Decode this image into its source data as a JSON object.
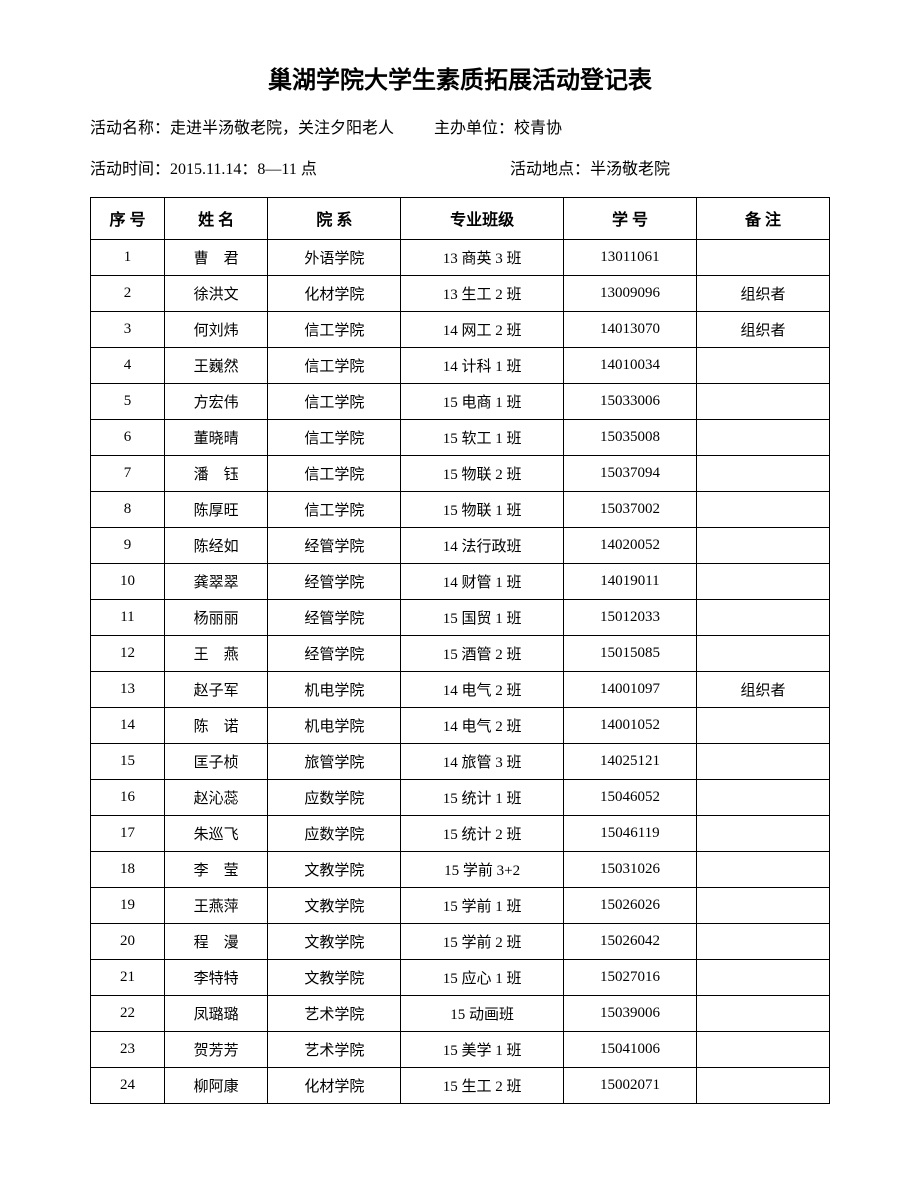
{
  "title": "巢湖学院大学生素质拓展活动登记表",
  "info": {
    "activity_name_label": "活动名称：",
    "activity_name": "走进半汤敬老院，关注夕阳老人",
    "host_label": "主办单位：",
    "host": "校青协",
    "time_label": "活动时间：",
    "time": "2015.11.14：8—11 点",
    "location_label": "活动地点：",
    "location": "半汤敬老院"
  },
  "table": {
    "headers": {
      "seq": "序 号",
      "name": "姓 名",
      "dept": "院 系",
      "class": "专业班级",
      "id": "学 号",
      "note": "备 注"
    },
    "rows": [
      {
        "seq": "1",
        "name": "曹　君",
        "dept": "外语学院",
        "class": "13 商英 3 班",
        "id": "13011061",
        "note": ""
      },
      {
        "seq": "2",
        "name": "徐洪文",
        "dept": "化材学院",
        "class": "13 生工 2 班",
        "id": "13009096",
        "note": "组织者"
      },
      {
        "seq": "3",
        "name": "何刘炜",
        "dept": "信工学院",
        "class": "14 网工 2 班",
        "id": "14013070",
        "note": "组织者"
      },
      {
        "seq": "4",
        "name": "王巍然",
        "dept": "信工学院",
        "class": "14 计科 1 班",
        "id": "14010034",
        "note": ""
      },
      {
        "seq": "5",
        "name": "方宏伟",
        "dept": "信工学院",
        "class": "15 电商 1 班",
        "id": "15033006",
        "note": ""
      },
      {
        "seq": "6",
        "name": "董晓晴",
        "dept": "信工学院",
        "class": "15 软工 1 班",
        "id": "15035008",
        "note": ""
      },
      {
        "seq": "7",
        "name": "潘　钰",
        "dept": "信工学院",
        "class": "15 物联 2 班",
        "id": "15037094",
        "note": ""
      },
      {
        "seq": "8",
        "name": "陈厚旺",
        "dept": "信工学院",
        "class": "15 物联 1 班",
        "id": "15037002",
        "note": ""
      },
      {
        "seq": "9",
        "name": "陈经如",
        "dept": "经管学院",
        "class": "14 法行政班",
        "id": "14020052",
        "note": ""
      },
      {
        "seq": "10",
        "name": "龚翠翠",
        "dept": "经管学院",
        "class": "14 财管 1 班",
        "id": "14019011",
        "note": ""
      },
      {
        "seq": "11",
        "name": "杨丽丽",
        "dept": "经管学院",
        "class": "15 国贸 1 班",
        "id": "15012033",
        "note": ""
      },
      {
        "seq": "12",
        "name": "王　燕",
        "dept": "经管学院",
        "class": "15 酒管 2 班",
        "id": "15015085",
        "note": ""
      },
      {
        "seq": "13",
        "name": "赵子军",
        "dept": "机电学院",
        "class": "14 电气 2 班",
        "id": "14001097",
        "note": "组织者"
      },
      {
        "seq": "14",
        "name": "陈　诺",
        "dept": "机电学院",
        "class": "14 电气 2 班",
        "id": "14001052",
        "note": ""
      },
      {
        "seq": "15",
        "name": "匡子桢",
        "dept": "旅管学院",
        "class": "14 旅管 3 班",
        "id": "14025121",
        "note": ""
      },
      {
        "seq": "16",
        "name": "赵沁蕊",
        "dept": "应数学院",
        "class": "15 统计 1 班",
        "id": "15046052",
        "note": ""
      },
      {
        "seq": "17",
        "name": "朱巡飞",
        "dept": "应数学院",
        "class": "15 统计 2 班",
        "id": "15046119",
        "note": ""
      },
      {
        "seq": "18",
        "name": "李　莹",
        "dept": "文教学院",
        "class": "15 学前 3+2",
        "id": "15031026",
        "note": ""
      },
      {
        "seq": "19",
        "name": "王燕萍",
        "dept": "文教学院",
        "class": "15 学前 1 班",
        "id": "15026026",
        "note": ""
      },
      {
        "seq": "20",
        "name": "程　漫",
        "dept": "文教学院",
        "class": "15 学前 2 班",
        "id": "15026042",
        "note": ""
      },
      {
        "seq": "21",
        "name": "李特特",
        "dept": "文教学院",
        "class": "15 应心 1 班",
        "id": "15027016",
        "note": ""
      },
      {
        "seq": "22",
        "name": "凤璐璐",
        "dept": "艺术学院",
        "class": "15 动画班",
        "id": "15039006",
        "note": ""
      },
      {
        "seq": "23",
        "name": "贺芳芳",
        "dept": "艺术学院",
        "class": "15 美学 1 班",
        "id": "15041006",
        "note": ""
      },
      {
        "seq": "24",
        "name": "柳阿康",
        "dept": "化材学院",
        "class": "15 生工 2 班",
        "id": "15002071",
        "note": ""
      }
    ]
  }
}
